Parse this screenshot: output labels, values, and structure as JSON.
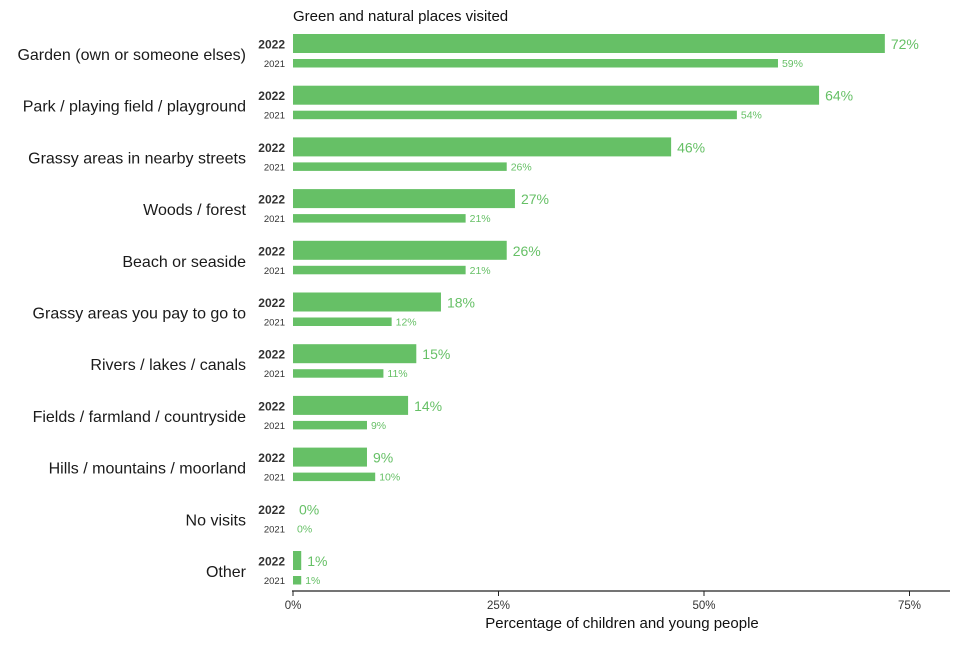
{
  "chart_data": {
    "type": "bar",
    "orientation": "horizontal",
    "title": "Green and natural places visited",
    "xlabel": "Percentage of children and young people",
    "ylabel": "",
    "xlim": [
      0,
      80
    ],
    "x_ticks": [
      {
        "value": 0,
        "label": "0%"
      },
      {
        "value": 25,
        "label": "25%"
      },
      {
        "value": 50,
        "label": "50%"
      },
      {
        "value": 75,
        "label": "75%"
      }
    ],
    "grid": false,
    "legend": "none",
    "bar_color": "#66c066",
    "label_color": "#66c066",
    "categories": [
      "Garden (own or someone elses)",
      "Park / playing field / playground",
      "Grassy areas in nearby streets",
      "Woods / forest",
      "Beach or seaside",
      "Grassy areas you pay to go to",
      "Rivers / lakes / canals",
      "Fields / farmland / countryside",
      "Hills / mountains / moorland",
      "No visits",
      "Other"
    ],
    "series": [
      {
        "name": "2022",
        "values": [
          72,
          64,
          46,
          27,
          26,
          18,
          15,
          14,
          9,
          0,
          1
        ],
        "labels": [
          "72%",
          "64%",
          "46%",
          "27%",
          "26%",
          "18%",
          "15%",
          "14%",
          "9%",
          "0%",
          "1%"
        ]
      },
      {
        "name": "2021",
        "values": [
          59,
          54,
          26,
          21,
          21,
          12,
          11,
          9,
          10,
          0,
          1
        ],
        "labels": [
          "59%",
          "54%",
          "26%",
          "21%",
          "21%",
          "12%",
          "11%",
          "9%",
          "10%",
          "0%",
          "1%"
        ]
      }
    ]
  }
}
